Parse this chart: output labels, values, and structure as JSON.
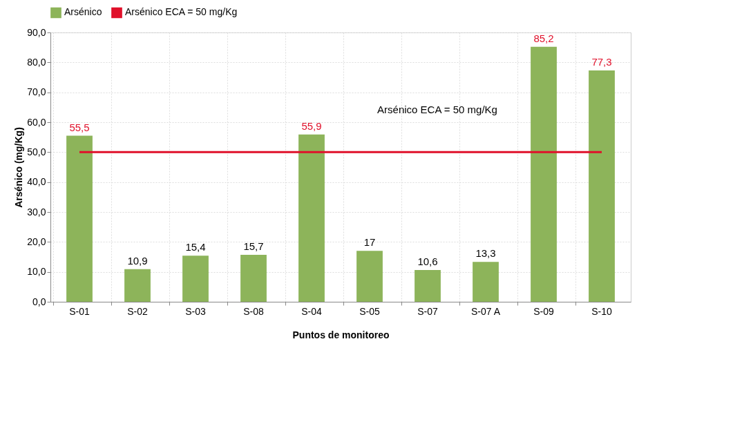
{
  "chart_data": {
    "type": "bar",
    "xlabel": "Puntos de monitoreo",
    "ylabel": "Arsénico (mg/Kg)",
    "categories": [
      "S-01",
      "S-02",
      "S-03",
      "S-08",
      "S-04",
      "S-05",
      "S-07",
      "S-07 A",
      "S-09",
      "S-10"
    ],
    "series": [
      {
        "name": "Arsénico",
        "color": "#8db45a",
        "values": [
          55.5,
          10.9,
          15.4,
          15.7,
          55.9,
          17,
          10.6,
          13.3,
          85.2,
          77.3
        ],
        "value_labels": [
          "55,5",
          "10,9",
          "15,4",
          "15,7",
          "55,9",
          "17",
          "10,6",
          "13,3",
          "85,2",
          "77,3"
        ]
      },
      {
        "name": "Arsénico ECA = 50 mg/Kg",
        "type": "line",
        "color": "#e0102a",
        "values": [
          50,
          50,
          50,
          50,
          50,
          50,
          50,
          50,
          50,
          50
        ]
      }
    ],
    "annotations": [
      "Arsénico ECA = 50 mg/Kg"
    ],
    "ylim": [
      0,
      90
    ],
    "yticks": [
      {
        "value": 0,
        "label": "0,0"
      },
      {
        "value": 10,
        "label": "10,0"
      },
      {
        "value": 20,
        "label": "20,0"
      },
      {
        "value": 30,
        "label": "30,0"
      },
      {
        "value": 40,
        "label": "40,0"
      },
      {
        "value": 50,
        "label": "50,0"
      },
      {
        "value": 60,
        "label": "60,0"
      },
      {
        "value": 70,
        "label": "70,0"
      },
      {
        "value": 80,
        "label": "80,0"
      },
      {
        "value": 90,
        "label": "90,0"
      }
    ],
    "grid": true,
    "legend": "top"
  }
}
